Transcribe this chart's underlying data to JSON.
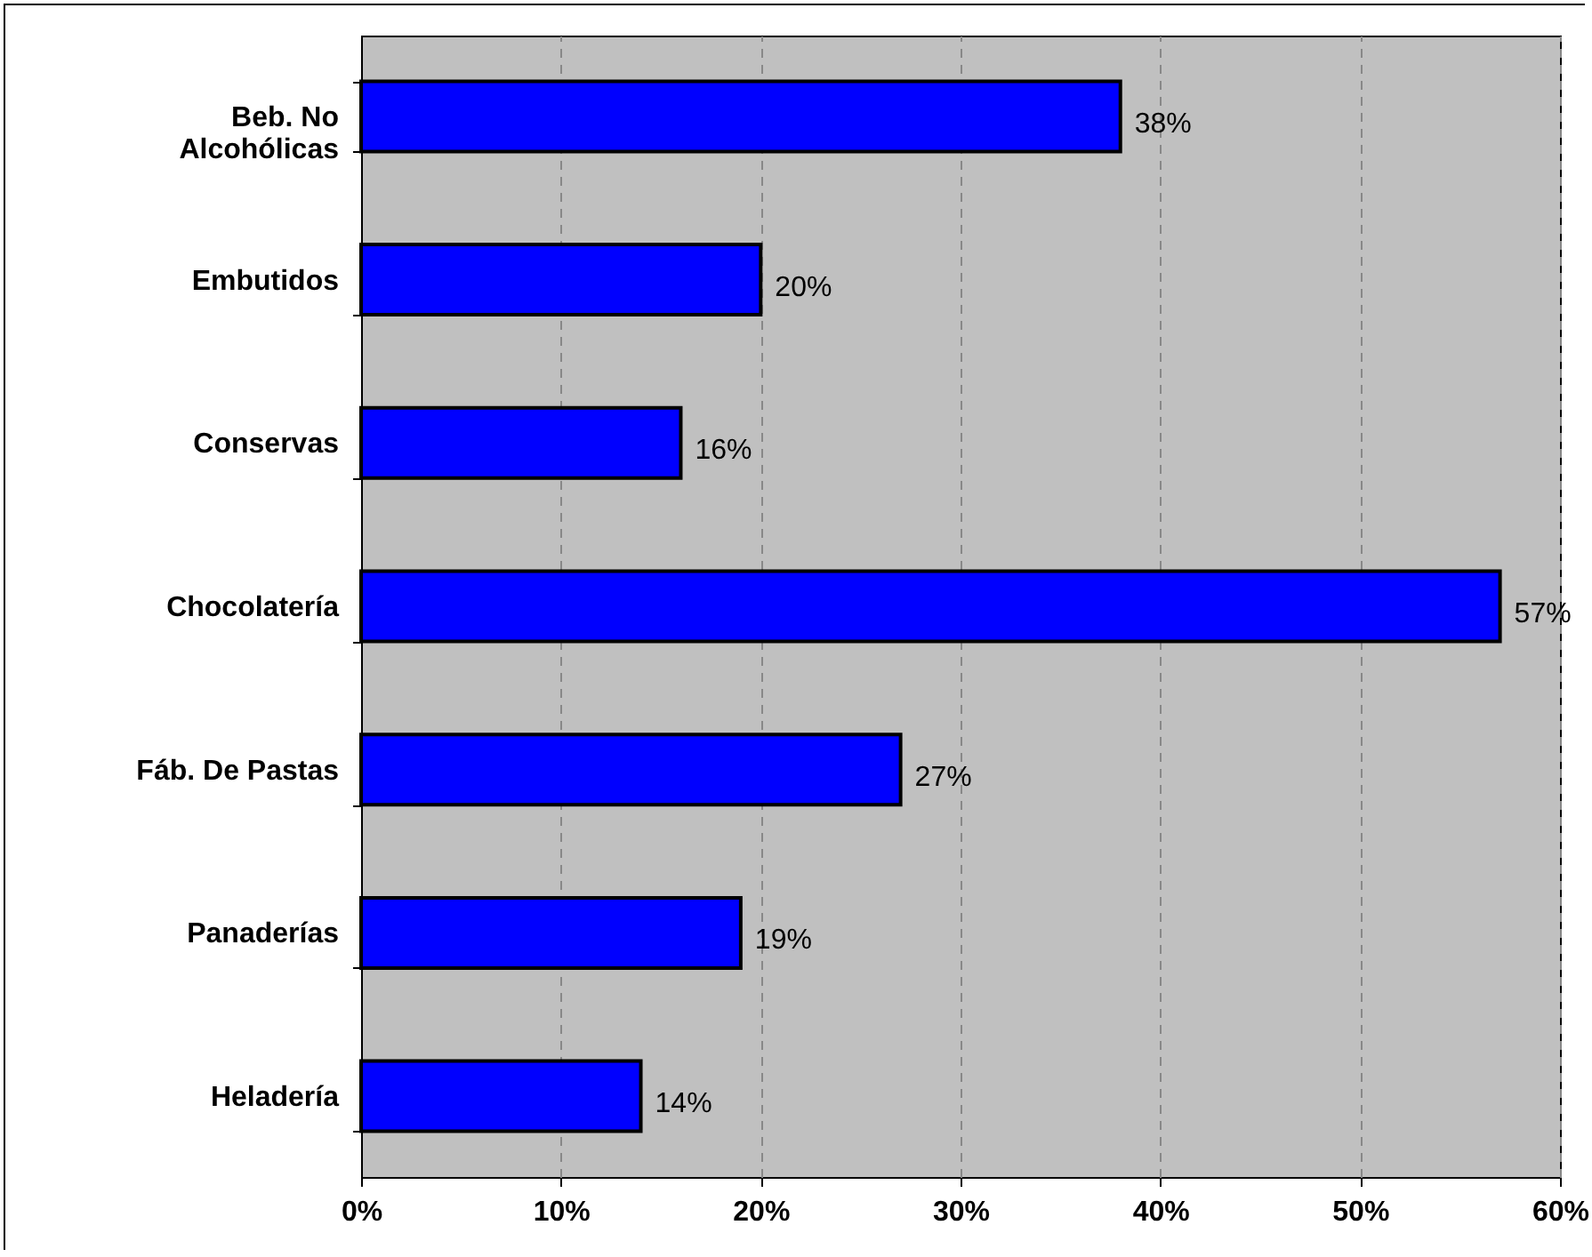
{
  "chart_data": {
    "type": "bar",
    "orientation": "horizontal",
    "categories": [
      "Beb. No\nAlcohólicas",
      "Embutidos",
      "Conservas",
      "Chocolatería",
      "Fáb. De Pastas",
      "Panaderías",
      "Heladería"
    ],
    "values": [
      38,
      20,
      16,
      57,
      27,
      19,
      14
    ],
    "color": "#0000ff",
    "value_labels": [
      "38%",
      "20%",
      "16%",
      "57%",
      "27%",
      "19%",
      "14%"
    ],
    "xlim": [
      0,
      60
    ],
    "xticks": [
      {
        "value": 0,
        "label": "0%"
      },
      {
        "value": 10,
        "label": "10%"
      },
      {
        "value": 20,
        "label": "20%"
      },
      {
        "value": 30,
        "label": "30%"
      },
      {
        "value": 40,
        "label": "40%"
      },
      {
        "value": 50,
        "label": "50%"
      },
      {
        "value": 60,
        "label": "60%"
      }
    ],
    "grid": "x"
  }
}
